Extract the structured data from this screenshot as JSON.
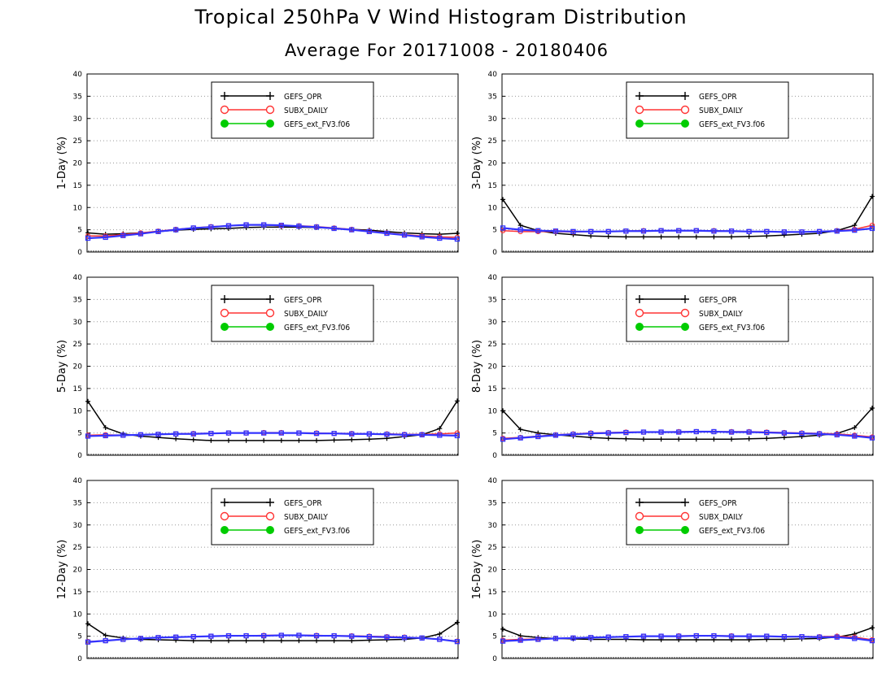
{
  "title": "Tropical 250hPa V Wind Histogram Distribution",
  "subtitle": "Average For 20171008 - 20180406",
  "colors": {
    "GEFS_OPR": "#000000",
    "SUBX_DAILY": "#ff3333",
    "GEFS_ext_FV3.f06": "#00cc00",
    "overlay": "#3333ff"
  },
  "chart_data": [
    {
      "type": "line",
      "ylabel": "1-Day (%)",
      "ylim": [
        0,
        40
      ],
      "yticks": [
        0,
        5,
        10,
        15,
        20,
        25,
        30,
        35,
        40
      ],
      "grid": true,
      "legend": "top-center",
      "x": [
        1,
        2,
        3,
        4,
        5,
        6,
        7,
        8,
        9,
        10,
        11,
        12,
        13,
        14,
        15,
        16,
        17,
        18,
        19,
        20,
        21,
        22
      ],
      "series": [
        {
          "name": "GEFS_OPR",
          "marker": "plus",
          "values": [
            4.3,
            4.0,
            4.1,
            4.3,
            4.6,
            4.9,
            5.1,
            5.2,
            5.3,
            5.5,
            5.6,
            5.6,
            5.6,
            5.5,
            5.3,
            5.1,
            4.9,
            4.6,
            4.3,
            4.1,
            4.0,
            4.2
          ]
        },
        {
          "name": "SUBX_DAILY",
          "marker": "circle",
          "values": [
            3.6,
            3.6,
            3.9,
            4.3,
            4.7,
            5.1,
            5.4,
            5.7,
            5.9,
            6.1,
            6.1,
            5.9,
            5.9,
            5.7,
            5.4,
            5.1,
            4.7,
            4.3,
            3.9,
            3.6,
            3.4,
            3.3
          ]
        },
        {
          "name": "GEFS_ext_FV3.f06",
          "marker": "dot",
          "values": [
            3.1,
            3.3,
            3.7,
            4.1,
            4.6,
            5.0,
            5.4,
            5.6,
            5.9,
            6.1,
            6.1,
            6.0,
            5.8,
            5.6,
            5.3,
            5.0,
            4.6,
            4.2,
            3.8,
            3.4,
            3.1,
            2.9
          ]
        }
      ]
    },
    {
      "type": "line",
      "ylabel": "3-Day (%)",
      "ylim": [
        0,
        40
      ],
      "yticks": [
        0,
        5,
        10,
        15,
        20,
        25,
        30,
        35,
        40
      ],
      "grid": true,
      "legend": "top-center",
      "x": [
        1,
        2,
        3,
        4,
        5,
        6,
        7,
        8,
        9,
        10,
        11,
        12,
        13,
        14,
        15,
        16,
        17,
        18,
        19,
        20,
        21,
        22
      ],
      "series": [
        {
          "name": "GEFS_OPR",
          "marker": "plus",
          "values": [
            11.8,
            6.0,
            4.8,
            4.2,
            3.9,
            3.6,
            3.5,
            3.4,
            3.4,
            3.4,
            3.4,
            3.4,
            3.4,
            3.4,
            3.5,
            3.6,
            3.8,
            4.0,
            4.2,
            4.8,
            6.0,
            12.5
          ]
        },
        {
          "name": "SUBX_DAILY",
          "marker": "circle",
          "values": [
            4.8,
            4.6,
            4.6,
            4.6,
            4.5,
            4.6,
            4.6,
            4.7,
            4.8,
            4.8,
            4.8,
            4.8,
            4.8,
            4.7,
            4.6,
            4.6,
            4.5,
            4.5,
            4.6,
            4.8,
            5.1,
            6.0
          ]
        },
        {
          "name": "GEFS_ext_FV3.f06",
          "marker": "dot",
          "values": [
            5.4,
            5.0,
            4.8,
            4.7,
            4.6,
            4.6,
            4.6,
            4.7,
            4.7,
            4.8,
            4.8,
            4.8,
            4.7,
            4.7,
            4.6,
            4.6,
            4.5,
            4.5,
            4.6,
            4.7,
            4.9,
            5.3
          ]
        }
      ]
    },
    {
      "type": "line",
      "ylabel": "5-Day (%)",
      "ylim": [
        0,
        40
      ],
      "yticks": [
        0,
        5,
        10,
        15,
        20,
        25,
        30,
        35,
        40
      ],
      "grid": true,
      "legend": "top-center",
      "x": [
        1,
        2,
        3,
        4,
        5,
        6,
        7,
        8,
        9,
        10,
        11,
        12,
        13,
        14,
        15,
        16,
        17,
        18,
        19,
        20,
        21,
        22
      ],
      "series": [
        {
          "name": "GEFS_OPR",
          "marker": "plus",
          "values": [
            12.1,
            6.2,
            4.8,
            4.3,
            4.0,
            3.7,
            3.5,
            3.3,
            3.3,
            3.3,
            3.3,
            3.3,
            3.3,
            3.3,
            3.4,
            3.5,
            3.6,
            3.8,
            4.2,
            4.6,
            6.0,
            12.2
          ]
        },
        {
          "name": "SUBX_DAILY",
          "marker": "circle",
          "values": [
            4.5,
            4.6,
            4.5,
            4.6,
            4.7,
            4.8,
            4.9,
            4.9,
            5.0,
            5.0,
            5.1,
            5.1,
            5.0,
            5.0,
            4.9,
            4.9,
            4.8,
            4.8,
            4.7,
            4.7,
            4.8,
            5.0
          ]
        },
        {
          "name": "GEFS_ext_FV3.f06",
          "marker": "dot",
          "values": [
            4.3,
            4.4,
            4.5,
            4.6,
            4.7,
            4.8,
            4.8,
            4.9,
            5.0,
            5.0,
            5.0,
            5.0,
            5.0,
            4.9,
            4.9,
            4.8,
            4.8,
            4.7,
            4.6,
            4.6,
            4.5,
            4.4
          ]
        }
      ]
    },
    {
      "type": "line",
      "ylabel": "8-Day (%)",
      "ylim": [
        0,
        40
      ],
      "yticks": [
        0,
        5,
        10,
        15,
        20,
        25,
        30,
        35,
        40
      ],
      "grid": true,
      "legend": "top-center",
      "x": [
        1,
        2,
        3,
        4,
        5,
        6,
        7,
        8,
        9,
        10,
        11,
        12,
        13,
        14,
        15,
        16,
        17,
        18,
        19,
        20,
        21,
        22
      ],
      "series": [
        {
          "name": "GEFS_OPR",
          "marker": "plus",
          "values": [
            10.0,
            5.8,
            5.0,
            4.6,
            4.3,
            4.0,
            3.8,
            3.7,
            3.6,
            3.6,
            3.6,
            3.6,
            3.6,
            3.6,
            3.7,
            3.8,
            4.0,
            4.2,
            4.5,
            4.9,
            6.2,
            10.6
          ]
        },
        {
          "name": "SUBX_DAILY",
          "marker": "circle",
          "values": [
            3.8,
            4.0,
            4.3,
            4.6,
            4.8,
            5.0,
            5.1,
            5.2,
            5.2,
            5.2,
            5.3,
            5.3,
            5.3,
            5.3,
            5.3,
            5.2,
            5.1,
            5.0,
            4.9,
            4.8,
            4.5,
            4.1
          ]
        },
        {
          "name": "GEFS_ext_FV3.f06",
          "marker": "dot",
          "values": [
            3.6,
            3.9,
            4.2,
            4.5,
            4.7,
            4.9,
            5.0,
            5.1,
            5.2,
            5.2,
            5.2,
            5.3,
            5.3,
            5.2,
            5.2,
            5.1,
            5.0,
            4.9,
            4.8,
            4.6,
            4.3,
            3.9
          ]
        }
      ]
    },
    {
      "type": "line",
      "ylabel": "12-Day (%)",
      "ylim": [
        0,
        40
      ],
      "yticks": [
        0,
        5,
        10,
        15,
        20,
        25,
        30,
        35,
        40
      ],
      "grid": true,
      "legend": "top-center",
      "x": [
        1,
        2,
        3,
        4,
        5,
        6,
        7,
        8,
        9,
        10,
        11,
        12,
        13,
        14,
        15,
        16,
        17,
        18,
        19,
        20,
        21,
        22
      ],
      "series": [
        {
          "name": "GEFS_OPR",
          "marker": "plus",
          "values": [
            7.8,
            5.2,
            4.6,
            4.3,
            4.2,
            4.1,
            4.0,
            4.0,
            4.0,
            4.0,
            4.0,
            4.0,
            4.0,
            4.0,
            4.0,
            4.0,
            4.1,
            4.2,
            4.3,
            4.6,
            5.5,
            8.1
          ]
        },
        {
          "name": "SUBX_DAILY",
          "marker": "circle",
          "values": [
            3.8,
            4.0,
            4.3,
            4.5,
            4.7,
            4.8,
            4.9,
            5.0,
            5.1,
            5.1,
            5.2,
            5.2,
            5.2,
            5.2,
            5.1,
            5.1,
            5.0,
            4.9,
            4.8,
            4.6,
            4.3,
            3.9
          ]
        },
        {
          "name": "GEFS_ext_FV3.f06",
          "marker": "dot",
          "values": [
            3.7,
            4.0,
            4.3,
            4.5,
            4.7,
            4.8,
            4.9,
            5.0,
            5.1,
            5.1,
            5.1,
            5.2,
            5.2,
            5.1,
            5.1,
            5.0,
            4.9,
            4.8,
            4.7,
            4.6,
            4.3,
            3.8
          ]
        }
      ]
    },
    {
      "type": "line",
      "ylabel": "16-Day (%)",
      "ylim": [
        0,
        40
      ],
      "yticks": [
        0,
        5,
        10,
        15,
        20,
        25,
        30,
        35,
        40
      ],
      "grid": true,
      "legend": "top-center",
      "x": [
        1,
        2,
        3,
        4,
        5,
        6,
        7,
        8,
        9,
        10,
        11,
        12,
        13,
        14,
        15,
        16,
        17,
        18,
        19,
        20,
        21,
        22
      ],
      "series": [
        {
          "name": "GEFS_OPR",
          "marker": "plus",
          "values": [
            6.6,
            5.1,
            4.7,
            4.5,
            4.4,
            4.3,
            4.3,
            4.3,
            4.2,
            4.2,
            4.2,
            4.2,
            4.2,
            4.2,
            4.2,
            4.3,
            4.3,
            4.4,
            4.5,
            4.8,
            5.5,
            6.9
          ]
        },
        {
          "name": "SUBX_DAILY",
          "marker": "circle",
          "values": [
            4.1,
            4.3,
            4.4,
            4.5,
            4.6,
            4.7,
            4.8,
            4.9,
            5.0,
            5.0,
            5.1,
            5.1,
            5.1,
            5.1,
            5.0,
            5.0,
            4.9,
            4.9,
            4.9,
            5.0,
            4.8,
            4.2
          ]
        },
        {
          "name": "GEFS_ext_FV3.f06",
          "marker": "dot",
          "values": [
            3.9,
            4.1,
            4.3,
            4.5,
            4.6,
            4.7,
            4.8,
            4.9,
            5.0,
            5.0,
            5.0,
            5.1,
            5.1,
            5.0,
            5.0,
            5.0,
            4.9,
            4.9,
            4.8,
            4.8,
            4.5,
            4.0
          ]
        }
      ]
    }
  ]
}
